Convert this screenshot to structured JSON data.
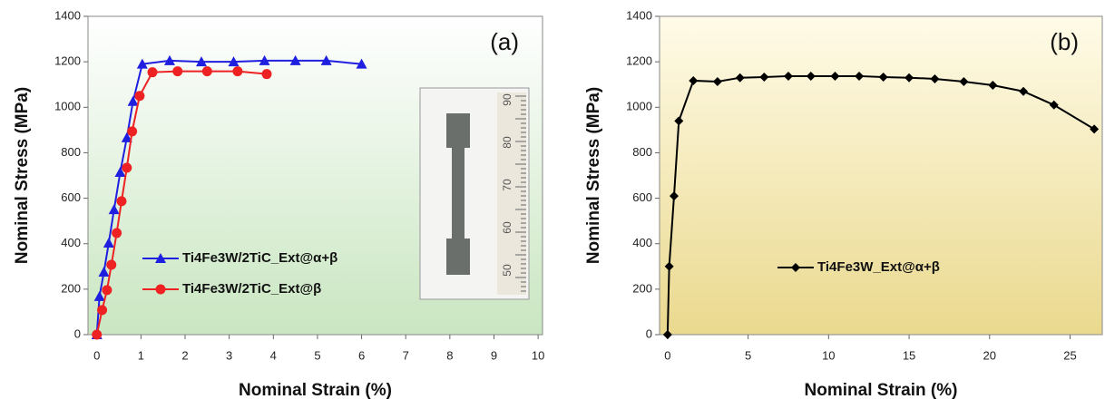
{
  "chart_data": [
    {
      "type": "line",
      "x_label": "Nominal Strain (%)",
      "y_label": "Nominal Stress (MPa)",
      "annotation": "(a)",
      "xlim": [
        -0.2,
        10.1
      ],
      "ylim": [
        0,
        1400
      ],
      "xticks": [
        0,
        1,
        2,
        3,
        4,
        5,
        6,
        7,
        8,
        9,
        10
      ],
      "yticks": [
        0,
        200,
        400,
        600,
        800,
        1000,
        1200,
        1400
      ],
      "legend": "lower center",
      "background": [
        "#ffffff",
        "#c9e6c1"
      ],
      "inset_labels": [
        "50",
        "60",
        "70",
        "80",
        "90"
      ],
      "series": [
        {
          "name": "Ti4Fe3W/2TiC_Ext@α+β",
          "color": "#1f1fe0",
          "marker": "triangle",
          "x": [
            0,
            0.06,
            0.16,
            0.27,
            0.39,
            0.53,
            0.68,
            0.82,
            1.03,
            1.65,
            2.37,
            3.1,
            3.8,
            4.5,
            5.2,
            6.0
          ],
          "values": [
            0,
            168,
            275,
            403,
            550,
            714,
            866,
            1026,
            1190,
            1205,
            1200,
            1200,
            1205,
            1205,
            1205,
            1190
          ]
        },
        {
          "name": "Ti4Fe3W/2TiC_Ext@β",
          "color": "#ee2222",
          "marker": "circle",
          "x": [
            0,
            0.12,
            0.23,
            0.33,
            0.45,
            0.56,
            0.68,
            0.8,
            0.97,
            1.26,
            1.83,
            2.5,
            3.19,
            3.85
          ],
          "values": [
            0,
            108,
            196,
            307,
            447,
            587,
            734,
            894,
            1050,
            1154,
            1158,
            1158,
            1158,
            1146
          ]
        }
      ]
    },
    {
      "type": "line",
      "x_label": "Nominal Strain (%)",
      "y_label": "Nominal Stress (MPa)",
      "annotation": "(b)",
      "xlim": [
        -0.5,
        27
      ],
      "ylim": [
        0,
        1400
      ],
      "xticks": [
        0,
        5,
        10,
        15,
        20,
        25
      ],
      "yticks": [
        0,
        200,
        400,
        600,
        800,
        1000,
        1200,
        1400
      ],
      "legend": "center left",
      "background": [
        "#fffbe8",
        "#ead98e"
      ],
      "series": [
        {
          "name": "Ti4Fe3W_Ext@α+β",
          "color": "#000000",
          "marker": "diamond",
          "x": [
            0,
            0.1,
            0.4,
            0.7,
            1.6,
            3.1,
            4.5,
            6.0,
            7.5,
            8.9,
            10.4,
            11.9,
            13.4,
            15.0,
            16.6,
            18.4,
            20.2,
            22.1,
            24.0,
            26.5
          ],
          "values": [
            0,
            300,
            610,
            940,
            1117,
            1113,
            1130,
            1133,
            1137,
            1137,
            1137,
            1137,
            1133,
            1130,
            1125,
            1113,
            1097,
            1070,
            1010,
            904
          ]
        }
      ]
    }
  ]
}
